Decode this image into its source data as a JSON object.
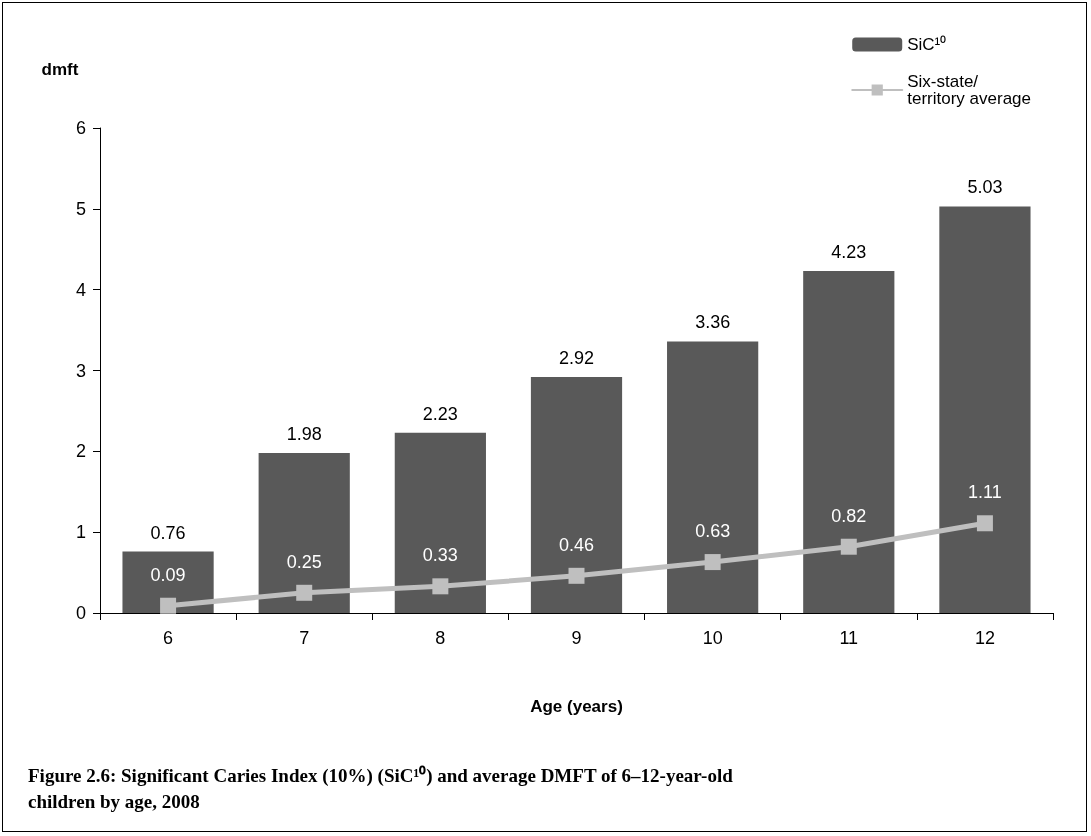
{
  "chart_data": {
    "type": "bar",
    "title": "Figure 2.6: Significant Caries Index (10%) (SiC¹⁰) and average DMFT of 6–12-year-old children by age, 2008",
    "xlabel": "Age (years)",
    "ylabel": "dmft",
    "categories": [
      "6",
      "7",
      "8",
      "9",
      "10",
      "11",
      "12"
    ],
    "series": [
      {
        "name": "SiC¹⁰",
        "color": "#595959",
        "values": [
          0.76,
          1.98,
          2.23,
          2.92,
          3.36,
          4.23,
          5.03
        ]
      },
      {
        "name": "Six-state/territory average",
        "type": "line",
        "color": "#bfbfbf",
        "marker": "square",
        "values": [
          0.09,
          0.25,
          0.33,
          0.46,
          0.63,
          0.82,
          1.11
        ]
      }
    ],
    "ylim": [
      0,
      6
    ],
    "yticks": [
      0,
      1,
      2,
      3,
      4,
      5,
      6
    ],
    "grid": false,
    "legend": "top right",
    "data_labels": true
  }
}
